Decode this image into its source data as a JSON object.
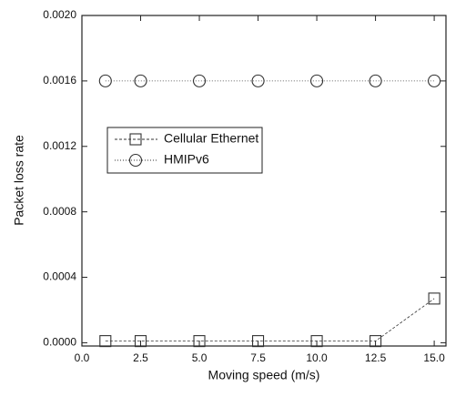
{
  "chart_data": {
    "type": "line",
    "x_label": "Moving speed (m/s)",
    "y_label": "Packet loss rate",
    "x": [
      1,
      2.5,
      5,
      7.5,
      10,
      12.5,
      15
    ],
    "series": [
      {
        "name": "Cellular Ethernet",
        "color": "#333333",
        "marker": "square",
        "values": [
          1e-05,
          1e-05,
          1e-05,
          1e-05,
          1e-05,
          1e-05,
          0.00027
        ]
      },
      {
        "name": "HMIPv6",
        "color": "#333333",
        "marker": "circle",
        "values": [
          0.0016,
          0.0016,
          0.0016,
          0.0016,
          0.0016,
          0.0016,
          0.0016
        ]
      }
    ],
    "xlim": [
      0,
      15.5
    ],
    "xticks": [
      {
        "value": 0,
        "label": "0.0"
      },
      2.5,
      {
        "value": 5,
        "label": "5.0"
      },
      7.5,
      {
        "value": 10,
        "label": "10.0"
      },
      12.5,
      {
        "value": 15,
        "label": "15.0"
      }
    ],
    "ylim": [
      -2e-05,
      0.002
    ],
    "yticks": [
      {
        "value": 0,
        "label": "0.0000"
      },
      {
        "value": 0.0004,
        "label": "0.0004"
      },
      {
        "value": 0.0008,
        "label": "0.0008"
      },
      {
        "value": 0.0012,
        "label": "0.0012"
      },
      {
        "value": 0.0016,
        "label": "0.0016"
      },
      {
        "value": 0.002,
        "label": "0.0020"
      }
    ],
    "legend": "center-left",
    "grid": false
  }
}
